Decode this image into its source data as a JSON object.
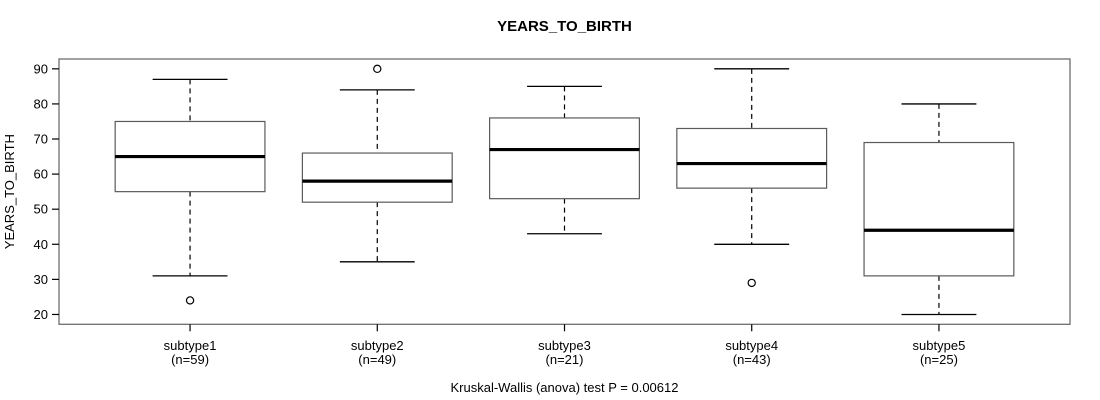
{
  "figure": {
    "background": "#ffffff"
  },
  "colors": {
    "text": "#000000",
    "frame_stroke": "#6e6e6e",
    "box_stroke": "#5a5a5a",
    "median_stroke": "#000000",
    "whisker_stroke": "#000000",
    "box_fill": "#ffffff"
  },
  "chart_data": {
    "type": "boxplot",
    "title": "YEARS_TO_BIRTH",
    "xlabel": "",
    "ylabel": "YEARS_TO_BIRTH",
    "caption": "Kruskal-Wallis (anova) test P = 0.00612",
    "ylim": [
      17.2,
      92.8
    ],
    "yticks": [
      20,
      30,
      40,
      50,
      60,
      70,
      80,
      90
    ],
    "grid": false,
    "legend": "none",
    "groups": [
      {
        "label": "subtype1",
        "n_label": "(n=59)",
        "low": 31,
        "q1": 55,
        "median": 65,
        "q3": 75,
        "high": 87,
        "outliers": [
          24
        ]
      },
      {
        "label": "subtype2",
        "n_label": "(n=49)",
        "low": 35,
        "q1": 52,
        "median": 58,
        "q3": 66,
        "high": 84,
        "outliers": [
          90
        ]
      },
      {
        "label": "subtype3",
        "n_label": "(n=21)",
        "low": 43,
        "q1": 53,
        "median": 67,
        "q3": 76,
        "high": 85,
        "outliers": []
      },
      {
        "label": "subtype4",
        "n_label": "(n=43)",
        "low": 40,
        "q1": 56,
        "median": 63,
        "q3": 73,
        "high": 90,
        "outliers": [
          29
        ]
      },
      {
        "label": "subtype5",
        "n_label": "(n=25)",
        "low": 20,
        "q1": 31,
        "median": 44,
        "q3": 69,
        "high": 80,
        "outliers": []
      }
    ]
  }
}
